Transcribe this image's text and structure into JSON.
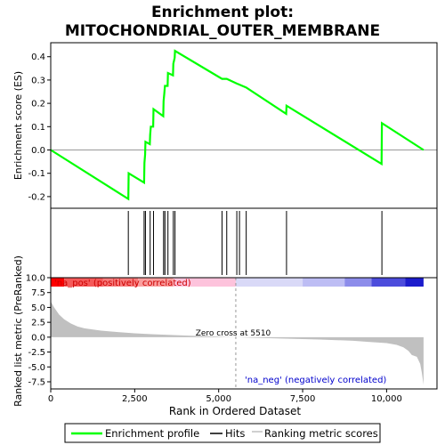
{
  "chart_data": {
    "type": "line",
    "title": "Enrichment plot:",
    "subtitle": "MITOCHONDRIAL_OUTER_MEMBRANE",
    "xlabel": "Rank in Ordered Dataset",
    "xlim": [
      0,
      11500
    ],
    "xticks": [
      0,
      2500,
      5000,
      7500,
      10000
    ],
    "xtick_labels": [
      "0",
      "2,500",
      "5,000",
      "7,500",
      "10,000"
    ],
    "panels": {
      "enrichment": {
        "ylabel": "Enrichment score (ES)",
        "ylim": [
          -0.25,
          0.46
        ],
        "yticks": [
          -0.2,
          -0.1,
          0.0,
          0.1,
          0.2,
          0.3,
          0.4
        ],
        "ytick_labels": [
          "-0.2",
          "-0.1",
          "0.0",
          "0.1",
          "0.2",
          "0.3",
          "0.4"
        ],
        "series": [
          {
            "name": "Enrichment profile",
            "color": "#00ff00",
            "points": [
              [
                0,
                0.0
              ],
              [
                2310,
                -0.21
              ],
              [
                2320,
                -0.1
              ],
              [
                2780,
                -0.14
              ],
              [
                2790,
                -0.055
              ],
              [
                2810,
                -0.02
              ],
              [
                2820,
                0.035
              ],
              [
                2950,
                0.025
              ],
              [
                2960,
                0.065
              ],
              [
                2980,
                0.1
              ],
              [
                3050,
                0.1
              ],
              [
                3060,
                0.175
              ],
              [
                3350,
                0.145
              ],
              [
                3360,
                0.21
              ],
              [
                3380,
                0.24
              ],
              [
                3400,
                0.275
              ],
              [
                3480,
                0.275
              ],
              [
                3490,
                0.33
              ],
              [
                3640,
                0.32
              ],
              [
                3650,
                0.37
              ],
              [
                3690,
                0.395
              ],
              [
                3700,
                0.425
              ],
              [
                5100,
                0.305
              ],
              [
                5240,
                0.305
              ],
              [
                5540,
                0.285
              ],
              [
                5620,
                0.28
              ],
              [
                5820,
                0.268
              ],
              [
                7010,
                0.155
              ],
              [
                7020,
                0.19
              ],
              [
                9850,
                -0.06
              ],
              [
                9860,
                0.115
              ],
              [
                11100,
                0.0
              ]
            ]
          }
        ]
      },
      "hits": {
        "name": "Hits",
        "positions": [
          2310,
          2780,
          2820,
          2960,
          3060,
          3360,
          3400,
          3490,
          3650,
          3700,
          5100,
          5240,
          5540,
          5620,
          5820,
          7020,
          9860
        ]
      },
      "ranking": {
        "name": "Ranking metric scores",
        "ylabel": "Ranked list metric (PreRanked)",
        "ylim": [
          -8.7,
          10.0
        ],
        "yticks": [
          -7.5,
          -5.0,
          -2.5,
          0.0,
          2.5,
          5.0,
          7.5,
          10.0
        ],
        "ytick_labels": [
          "-7.5",
          "-5.0",
          "-2.5",
          "0.0",
          "2.5",
          "5.0",
          "7.5",
          "10.0"
        ],
        "color": "#c0c0c0",
        "points": [
          [
            0,
            6.0
          ],
          [
            100,
            5.0
          ],
          [
            250,
            3.8
          ],
          [
            400,
            3.0
          ],
          [
            600,
            2.3
          ],
          [
            800,
            1.8
          ],
          [
            1000,
            1.5
          ],
          [
            1500,
            1.1
          ],
          [
            2000,
            0.85
          ],
          [
            2500,
            0.65
          ],
          [
            3000,
            0.5
          ],
          [
            3500,
            0.38
          ],
          [
            4000,
            0.28
          ],
          [
            4500,
            0.18
          ],
          [
            5000,
            0.08
          ],
          [
            5510,
            0.0
          ],
          [
            6000,
            -0.1
          ],
          [
            7000,
            -0.25
          ],
          [
            8000,
            -0.4
          ],
          [
            9000,
            -0.6
          ],
          [
            9500,
            -0.8
          ],
          [
            10000,
            -1.0
          ],
          [
            10300,
            -1.3
          ],
          [
            10500,
            -1.7
          ],
          [
            10650,
            -2.3
          ],
          [
            10750,
            -3.0
          ],
          [
            10900,
            -3.3
          ],
          [
            11000,
            -4.5
          ],
          [
            11050,
            -6.0
          ],
          [
            11100,
            -8.0
          ]
        ],
        "zero_cross": 5510,
        "zero_cross_label": "Zero cross at 5510",
        "pos_label": "'na_pos' (positively correlated)",
        "neg_label": "'na_neg' (negatively correlated)"
      }
    },
    "color_bar": [
      {
        "from": 0,
        "to": 400,
        "color": "#ff0000"
      },
      {
        "from": 400,
        "to": 1550,
        "color": "#f55a5a"
      },
      {
        "from": 1550,
        "to": 2600,
        "color": "#f77b7b"
      },
      {
        "from": 2600,
        "to": 3650,
        "color": "#fa9e9e"
      },
      {
        "from": 3650,
        "to": 5510,
        "color": "#fdc3dc"
      },
      {
        "from": 5510,
        "to": 7500,
        "color": "#d9d9f7"
      },
      {
        "from": 7500,
        "to": 8750,
        "color": "#bdbdf4"
      },
      {
        "from": 8750,
        "to": 9550,
        "color": "#8c8cea"
      },
      {
        "from": 9550,
        "to": 10550,
        "color": "#4c4cdc"
      },
      {
        "from": 10550,
        "to": 11100,
        "color": "#1c1ccc"
      }
    ],
    "legend": {
      "placement": "bottom",
      "items": [
        {
          "label": "Enrichment profile",
          "color": "#00ff00"
        },
        {
          "label": "Hits",
          "color": "#000000"
        },
        {
          "label": "Ranking metric scores",
          "color": "#c0c0c0"
        }
      ]
    }
  }
}
